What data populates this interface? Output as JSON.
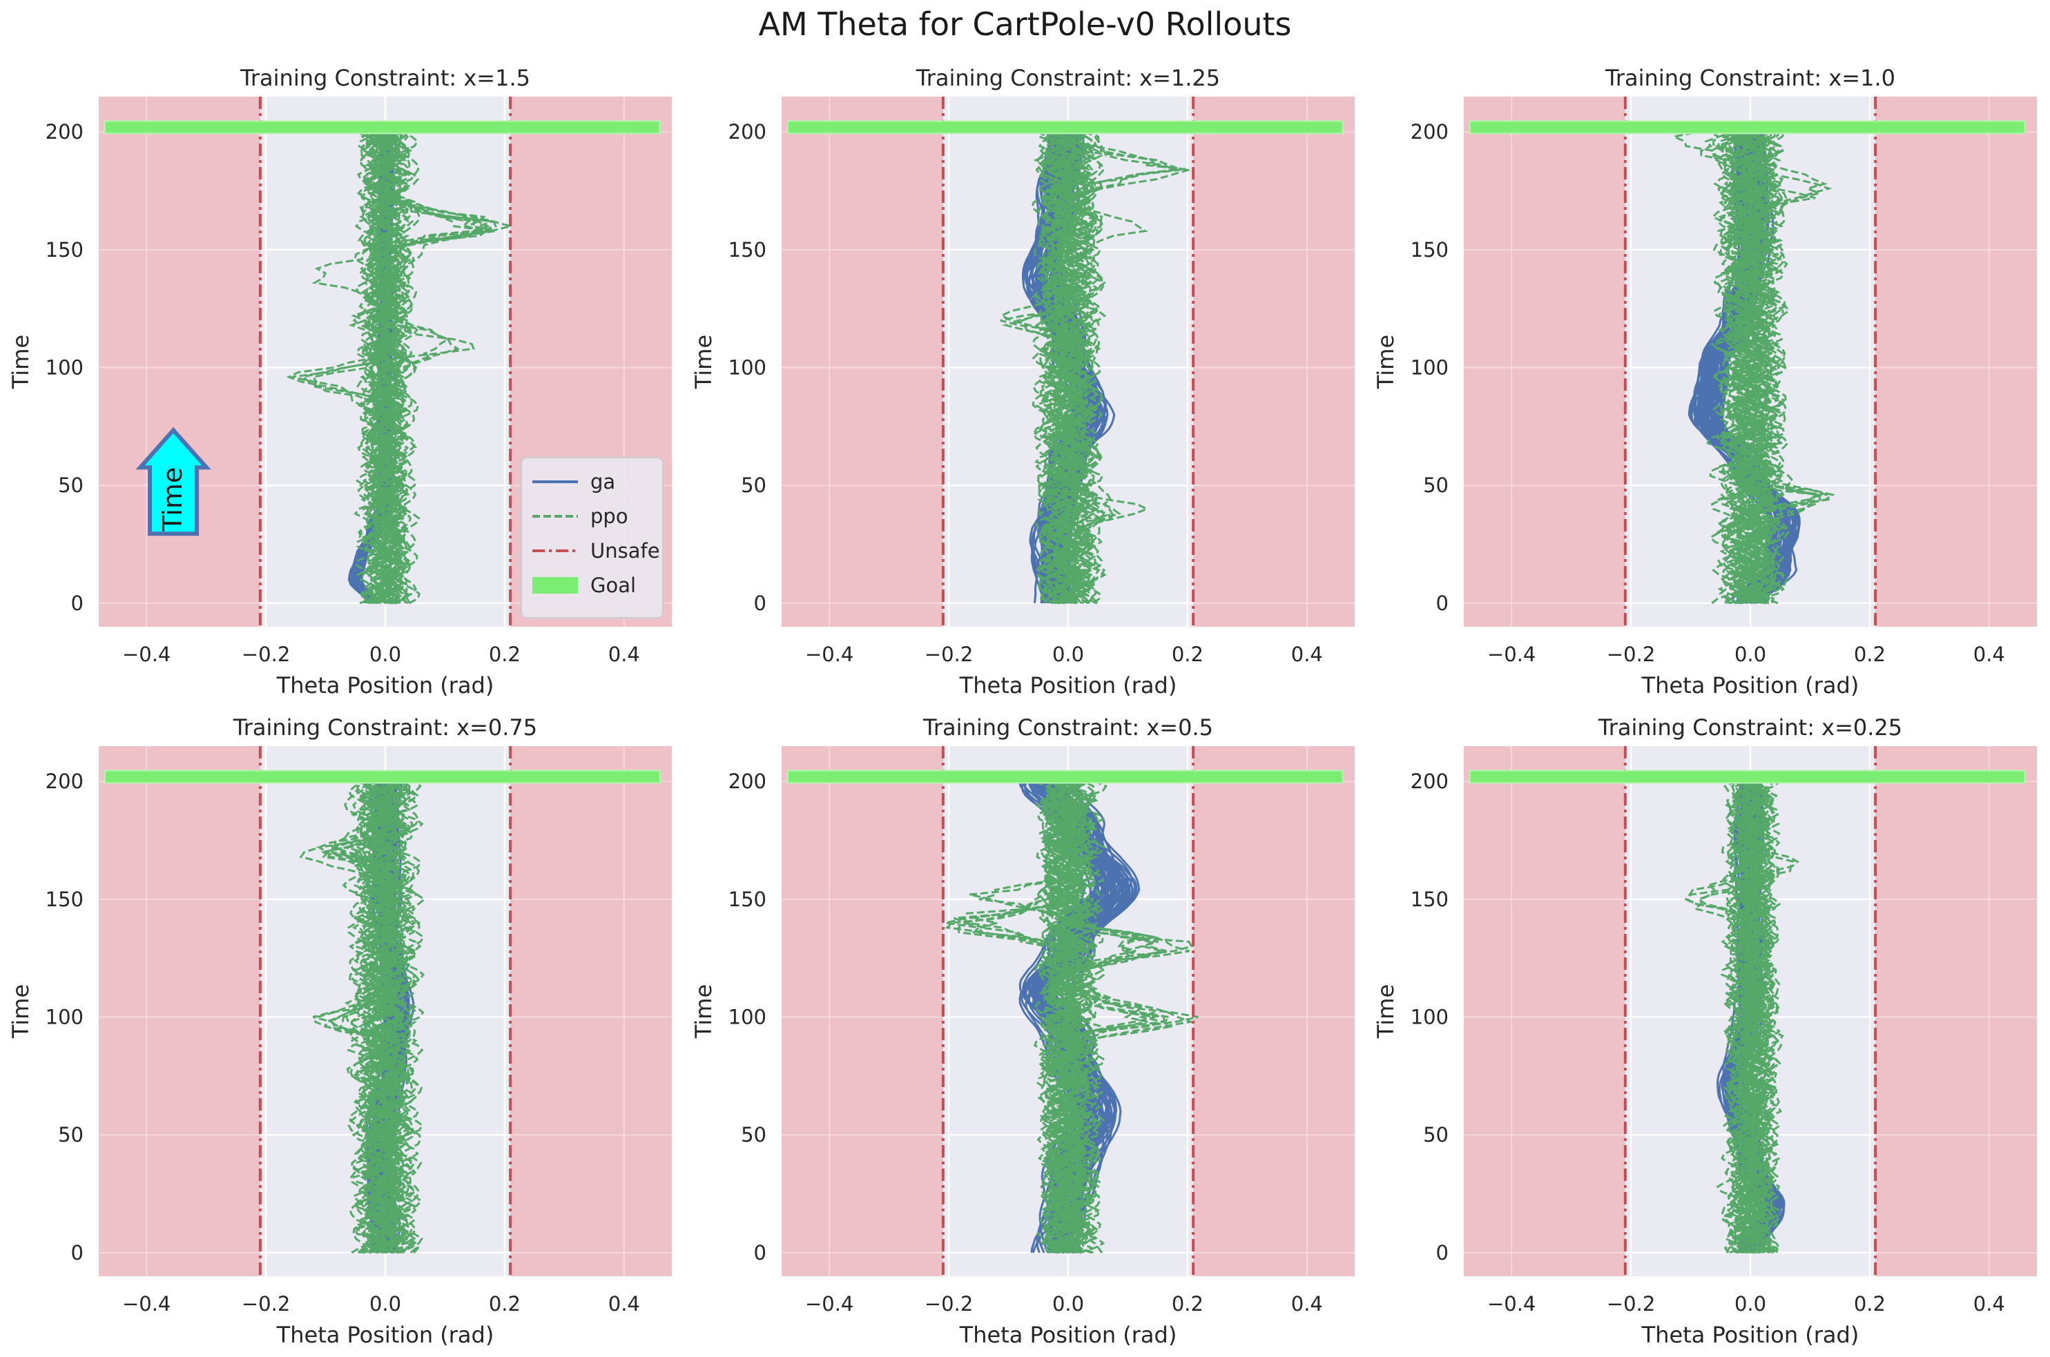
{
  "figure": {
    "title": "AM Theta for CartPole-v0 Rollouts",
    "colors": {
      "background": "#ffffff",
      "plot_bg": "#eaeaf2",
      "grid": "#ffffff",
      "unsafe_region": "#efb9bf",
      "ga": "#4c72b0",
      "ppo": "#55a868",
      "unsafe_line": "#c44e52",
      "goal": "#7aed72",
      "arrow_fill": "#00ffff",
      "arrow_edge": "#4c72b0"
    },
    "legend": {
      "placement": "lower-right (first panel)",
      "entries": [
        {
          "label": "ga",
          "style": "solid",
          "color": "#4c72b0"
        },
        {
          "label": "ppo",
          "style": "dashed",
          "color": "#55a868"
        },
        {
          "label": "Unsafe",
          "style": "dash-dot",
          "color": "#c44e52"
        },
        {
          "label": "Goal",
          "style": "band",
          "color": "#7aed72"
        }
      ]
    },
    "annotation": {
      "text": "Time",
      "panel": 0,
      "x": -0.355,
      "y": 50,
      "icon": "up-arrow-icon"
    }
  },
  "chart_data": [
    {
      "type": "line",
      "title": "Training Constraint: x=1.5",
      "xlabel": "Theta Position (rad)",
      "ylabel": "Time",
      "xlim": [
        -0.48,
        0.48
      ],
      "ylim": [
        -10,
        215
      ],
      "xticks": [
        -0.4,
        -0.2,
        0.0,
        0.2,
        0.4
      ],
      "yticks": [
        0,
        50,
        100,
        150,
        200
      ],
      "xtick_labels": [
        "−0.4",
        "−0.2",
        "0.0",
        "0.2",
        "0.4"
      ],
      "ytick_labels": [
        "0",
        "50",
        "100",
        "150",
        "200"
      ],
      "unsafe_bounds": [
        -0.2095,
        0.2095
      ],
      "goal": {
        "time": 202,
        "x_range": [
          -0.47,
          0.46
        ]
      },
      "grid": true,
      "series": [
        {
          "name": "ga",
          "style": "solid",
          "color": "#4c72b0",
          "count": 60,
          "center": [
            [
              0,
              -0.02
            ],
            [
              10,
              -0.05
            ],
            [
              20,
              -0.04
            ],
            [
              30,
              -0.02
            ],
            [
              45,
              0.0
            ],
            [
              80,
              0.0
            ],
            [
              120,
              0.0
            ],
            [
              160,
              0.0
            ],
            [
              200,
              0.0
            ]
          ],
          "halfwidth": 0.012
        },
        {
          "name": "ppo",
          "style": "dashed",
          "color": "#55a868",
          "count": 40,
          "center": [
            [
              0,
              0.0
            ],
            [
              200,
              0.0
            ]
          ],
          "halfwidth": 0.04,
          "outliers": [
            [
              95,
              -0.14
            ],
            [
              110,
              0.16
            ],
            [
              120,
              -0.13
            ],
            [
              140,
              -0.18
            ],
            [
              160,
              0.21
            ]
          ]
        }
      ]
    },
    {
      "type": "line",
      "title": "Training Constraint: x=1.25",
      "xlabel": "Theta Position (rad)",
      "ylabel": "Time",
      "xlim": [
        -0.48,
        0.48
      ],
      "ylim": [
        -10,
        215
      ],
      "xticks": [
        -0.4,
        -0.2,
        0.0,
        0.2,
        0.4
      ],
      "yticks": [
        0,
        50,
        100,
        150,
        200
      ],
      "xtick_labels": [
        "−0.4",
        "−0.2",
        "0.0",
        "0.2",
        "0.4"
      ],
      "ytick_labels": [
        "0",
        "50",
        "100",
        "150",
        "200"
      ],
      "unsafe_bounds": [
        -0.2095,
        0.2095
      ],
      "goal": {
        "time": 202,
        "x_range": [
          -0.47,
          0.46
        ]
      },
      "grid": true,
      "series": [
        {
          "name": "ga",
          "style": "solid",
          "color": "#4c72b0",
          "count": 60,
          "center": [
            [
              0,
              -0.02
            ],
            [
              30,
              -0.03
            ],
            [
              60,
              0.0
            ],
            [
              80,
              0.04
            ],
            [
              110,
              0.0
            ],
            [
              140,
              -0.04
            ],
            [
              170,
              -0.02
            ],
            [
              200,
              0.0
            ]
          ],
          "halfwidth": 0.04
        },
        {
          "name": "ppo",
          "style": "dashed",
          "color": "#55a868",
          "count": 40,
          "center": [
            [
              0,
              0.0
            ],
            [
              200,
              0.0
            ]
          ],
          "halfwidth": 0.05,
          "outliers": [
            [
              40,
              0.1
            ],
            [
              160,
              0.18
            ],
            [
              185,
              0.2
            ],
            [
              120,
              -0.1
            ]
          ]
        }
      ]
    },
    {
      "type": "line",
      "title": "Training Constraint: x=1.0",
      "xlabel": "Theta Position (rad)",
      "ylabel": "Time",
      "xlim": [
        -0.48,
        0.48
      ],
      "ylim": [
        -10,
        215
      ],
      "xticks": [
        -0.4,
        -0.2,
        0.0,
        0.2,
        0.4
      ],
      "yticks": [
        0,
        50,
        100,
        150,
        200
      ],
      "xtick_labels": [
        "−0.4",
        "−0.2",
        "0.0",
        "0.2",
        "0.4"
      ],
      "ytick_labels": [
        "0",
        "50",
        "100",
        "150",
        "200"
      ],
      "unsafe_bounds": [
        -0.2095,
        0.2095
      ],
      "goal": {
        "time": 202,
        "x_range": [
          -0.47,
          0.46
        ]
      },
      "grid": true,
      "series": [
        {
          "name": "ga",
          "style": "solid",
          "color": "#4c72b0",
          "count": 60,
          "center": [
            [
              0,
              0.0
            ],
            [
              15,
              0.05
            ],
            [
              35,
              0.06
            ],
            [
              55,
              0.0
            ],
            [
              80,
              -0.07
            ],
            [
              100,
              -0.06
            ],
            [
              120,
              -0.02
            ],
            [
              150,
              0.01
            ],
            [
              200,
              0.0
            ]
          ],
          "halfwidth": 0.035
        },
        {
          "name": "ppo",
          "style": "dashed",
          "color": "#55a868",
          "count": 40,
          "center": [
            [
              0,
              0.0
            ],
            [
              200,
              0.0
            ]
          ],
          "halfwidth": 0.05,
          "outliers": [
            [
              45,
              0.13
            ],
            [
              175,
              0.12
            ],
            [
              195,
              -0.12
            ]
          ]
        }
      ]
    },
    {
      "type": "line",
      "title": "Training Constraint: x=0.75",
      "xlabel": "Theta Position (rad)",
      "ylabel": "Time",
      "xlim": [
        -0.48,
        0.48
      ],
      "ylim": [
        -10,
        215
      ],
      "xticks": [
        -0.4,
        -0.2,
        0.0,
        0.2,
        0.4
      ],
      "yticks": [
        0,
        50,
        100,
        150,
        200
      ],
      "xtick_labels": [
        "−0.4",
        "−0.2",
        "0.0",
        "0.2",
        "0.4"
      ],
      "ytick_labels": [
        "0",
        "50",
        "100",
        "150",
        "200"
      ],
      "unsafe_bounds": [
        -0.2095,
        0.2095
      ],
      "goal": {
        "time": 202,
        "x_range": [
          -0.47,
          0.46
        ]
      },
      "grid": true,
      "series": [
        {
          "name": "ga",
          "style": "solid",
          "color": "#4c72b0",
          "count": 60,
          "center": [
            [
              0,
              0.0
            ],
            [
              40,
              -0.01
            ],
            [
              100,
              0.02
            ],
            [
              150,
              0.0
            ],
            [
              200,
              0.0
            ]
          ],
          "halfwidth": 0.025
        },
        {
          "name": "ppo",
          "style": "dashed",
          "color": "#55a868",
          "count": 40,
          "center": [
            [
              0,
              0.0
            ],
            [
              200,
              0.0
            ]
          ],
          "halfwidth": 0.05,
          "outliers": [
            [
              100,
              -0.13
            ],
            [
              170,
              -0.1
            ]
          ]
        }
      ]
    },
    {
      "type": "line",
      "title": "Training Constraint: x=0.5",
      "xlabel": "Theta Position (rad)",
      "ylabel": "Time",
      "xlim": [
        -0.48,
        0.48
      ],
      "ylim": [
        -10,
        215
      ],
      "xticks": [
        -0.4,
        -0.2,
        0.0,
        0.2,
        0.4
      ],
      "yticks": [
        0,
        50,
        100,
        150,
        200
      ],
      "xtick_labels": [
        "−0.4",
        "−0.2",
        "0.0",
        "0.2",
        "0.4"
      ],
      "ytick_labels": [
        "0",
        "50",
        "100",
        "150",
        "200"
      ],
      "unsafe_bounds": [
        -0.2095,
        0.2095
      ],
      "goal": {
        "time": 202,
        "x_range": [
          -0.47,
          0.46
        ]
      },
      "grid": true,
      "series": [
        {
          "name": "ga",
          "style": "solid",
          "color": "#4c72b0",
          "count": 60,
          "center": [
            [
              0,
              -0.02
            ],
            [
              30,
              0.0
            ],
            [
              60,
              0.04
            ],
            [
              90,
              0.0
            ],
            [
              110,
              -0.05
            ],
            [
              130,
              0.0
            ],
            [
              155,
              0.07
            ],
            [
              180,
              0.02
            ],
            [
              200,
              -0.04
            ]
          ],
          "halfwidth": 0.05
        },
        {
          "name": "ppo",
          "style": "dashed",
          "color": "#55a868",
          "count": 40,
          "center": [
            [
              0,
              0.0
            ],
            [
              200,
              0.0
            ]
          ],
          "halfwidth": 0.05,
          "outliers": [
            [
              100,
              0.2
            ],
            [
              130,
              0.2
            ],
            [
              140,
              -0.2
            ],
            [
              150,
              -0.18
            ]
          ]
        }
      ]
    },
    {
      "type": "line",
      "title": "Training Constraint: x=0.25",
      "xlabel": "Theta Position (rad)",
      "ylabel": "Time",
      "xlim": [
        -0.48,
        0.48
      ],
      "ylim": [
        -10,
        215
      ],
      "xticks": [
        -0.4,
        -0.2,
        0.0,
        0.2,
        0.4
      ],
      "yticks": [
        0,
        50,
        100,
        150,
        200
      ],
      "xtick_labels": [
        "−0.4",
        "−0.2",
        "0.0",
        "0.2",
        "0.4"
      ],
      "ytick_labels": [
        "0",
        "50",
        "100",
        "150",
        "200"
      ],
      "unsafe_bounds": [
        -0.2095,
        0.2095
      ],
      "goal": {
        "time": 202,
        "x_range": [
          -0.47,
          0.46
        ]
      },
      "grid": true,
      "series": [
        {
          "name": "ga",
          "style": "solid",
          "color": "#4c72b0",
          "count": 60,
          "center": [
            [
              0,
              0.0
            ],
            [
              20,
              0.04
            ],
            [
              40,
              0.0
            ],
            [
              70,
              -0.03
            ],
            [
              100,
              0.0
            ],
            [
              150,
              0.0
            ],
            [
              200,
              0.0
            ]
          ],
          "halfwidth": 0.025
        },
        {
          "name": "ppo",
          "style": "dashed",
          "color": "#55a868",
          "count": 40,
          "center": [
            [
              0,
              0.0
            ],
            [
              200,
              0.0
            ]
          ],
          "halfwidth": 0.04,
          "outliers": [
            [
              15,
              -0.06
            ],
            [
              150,
              -0.1
            ],
            [
              165,
              0.07
            ]
          ]
        }
      ]
    }
  ]
}
